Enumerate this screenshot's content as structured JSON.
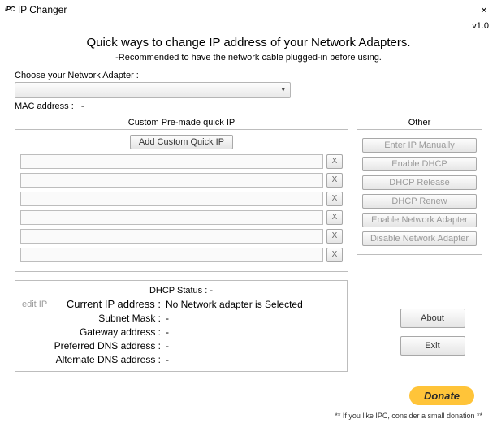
{
  "titlebar": {
    "logo": "IPC",
    "title": "IP Changer",
    "close": "×"
  },
  "version": "v1.0",
  "heading": "Quick ways to change IP address of your Network Adapters.",
  "subheading": "-Recommended to have the network cable plugged-in before using.",
  "adapter": {
    "label": "Choose your Network Adapter :",
    "mac_label": "MAC address :",
    "mac_value": "-"
  },
  "custom": {
    "title": "Custom Pre-made quick IP",
    "add_label": "Add Custom Quick IP",
    "slot_delete": "X",
    "slots": [
      "",
      "",
      "",
      "",
      "",
      ""
    ]
  },
  "other": {
    "title": "Other",
    "buttons": [
      "Enter IP Manually",
      "Enable DHCP",
      "DHCP Release",
      "DHCP Renew",
      "Enable Network Adapter",
      "Disable Network Adapter"
    ]
  },
  "status": {
    "dhcp_label": "DHCP Status :",
    "dhcp_value": "-",
    "edit_ip": "edit IP",
    "rows": {
      "ip_label": "Current IP address :",
      "ip_value": "No Network adapter is Selected",
      "subnet_label": "Subnet Mask :",
      "subnet_value": "-",
      "gateway_label": "Gateway address :",
      "gateway_value": "-",
      "pref_dns_label": "Preferred DNS address :",
      "pref_dns_value": "-",
      "alt_dns_label": "Alternate DNS address :",
      "alt_dns_value": "-"
    }
  },
  "bottom": {
    "about": "About",
    "exit": "Exit",
    "donate": "Donate"
  },
  "footer": "** If you like IPC, consider a small donation **",
  "colors": {
    "donate_bg": "#ffc439"
  }
}
